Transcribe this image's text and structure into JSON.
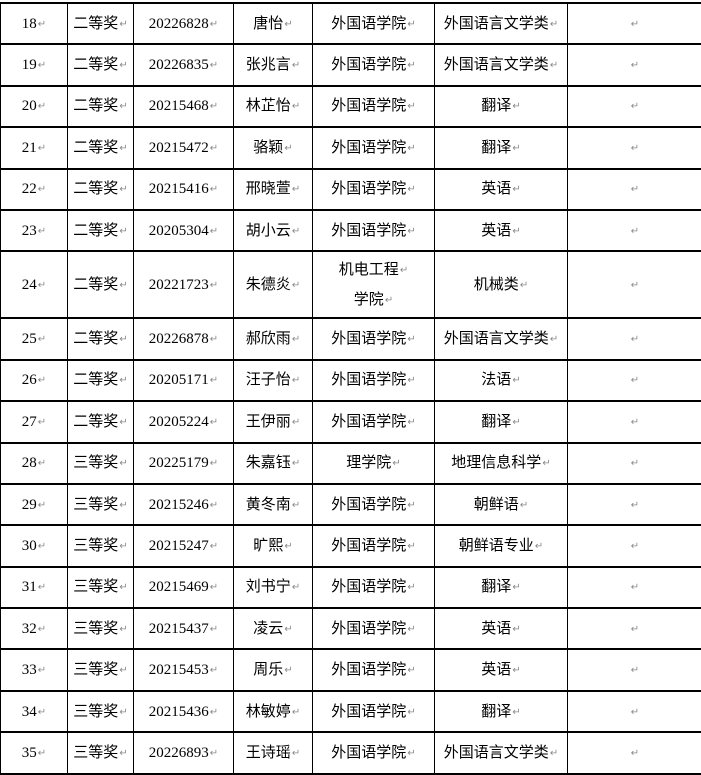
{
  "marks": {
    "paragraph_mark": "↵"
  },
  "colors": {
    "border": "#000000",
    "text": "#000000",
    "paragraph_mark": "#8a8a8a",
    "background": "#ffffff"
  },
  "table": {
    "rows": [
      {
        "no": "18",
        "award": "二等奖",
        "student_id": "20226828",
        "name": "唐怡",
        "college": [
          "外国语学院"
        ],
        "major": "外国语言文学类",
        "tail_align": "center"
      },
      {
        "no": "19",
        "award": "二等奖",
        "student_id": "20226835",
        "name": "张兆言",
        "college": [
          "外国语学院"
        ],
        "major": "外国语言文学类",
        "tail_align": "center"
      },
      {
        "no": "20",
        "award": "二等奖",
        "student_id": "20215468",
        "name": "林芷怡",
        "college": [
          "外国语学院"
        ],
        "major": "翻译",
        "tail_align": "center"
      },
      {
        "no": "21",
        "award": "二等奖",
        "student_id": "20215472",
        "name": "骆颖",
        "college": [
          "外国语学院"
        ],
        "major": "翻译",
        "tail_align": "center"
      },
      {
        "no": "22",
        "award": "二等奖",
        "student_id": "20215416",
        "name": "邢晓萱",
        "college": [
          "外国语学院"
        ],
        "major": "英语",
        "tail_align": "center"
      },
      {
        "no": "23",
        "award": "二等奖",
        "student_id": "20205304",
        "name": "胡小云",
        "college": [
          "外国语学院"
        ],
        "major": "英语",
        "tail_align": "center"
      },
      {
        "no": "24",
        "award": "二等奖",
        "student_id": "20221723",
        "name": "朱德炎",
        "college": [
          "机电工程",
          "学院"
        ],
        "major": "机械类",
        "tail_align": "center"
      },
      {
        "no": "25",
        "award": "二等奖",
        "student_id": "20226878",
        "name": "郝欣雨",
        "college": [
          "外国语学院"
        ],
        "major": "外国语言文学类",
        "tail_align": "center"
      },
      {
        "no": "26",
        "award": "二等奖",
        "student_id": "20205171",
        "name": "汪子怡",
        "college": [
          "外国语学院"
        ],
        "major": "法语",
        "tail_align": "center"
      },
      {
        "no": "27",
        "award": "二等奖",
        "student_id": "20205224",
        "name": "王伊丽",
        "college": [
          "外国语学院"
        ],
        "major": "翻译",
        "tail_align": "center"
      },
      {
        "no": "28",
        "award": "三等奖",
        "student_id": "20225179",
        "name": "朱嘉钰",
        "college": [
          "理学院"
        ],
        "major": "地理信息科学",
        "tail_align": "center"
      },
      {
        "no": "29",
        "award": "三等奖",
        "student_id": "20215246",
        "name": "黄冬南",
        "college": [
          "外国语学院"
        ],
        "major": "朝鲜语",
        "tail_align": "center"
      },
      {
        "no": "30",
        "award": "三等奖",
        "student_id": "20215247",
        "name": "旷熙",
        "college": [
          "外国语学院"
        ],
        "major": "朝鲜语专业",
        "tail_align": "center"
      },
      {
        "no": "31",
        "award": "三等奖",
        "student_id": "20215469",
        "name": "刘书宁",
        "college": [
          "外国语学院"
        ],
        "major": "翻译",
        "tail_align": "center"
      },
      {
        "no": "32",
        "award": "三等奖",
        "student_id": "20215437",
        "name": "凌云",
        "college": [
          "外国语学院"
        ],
        "major": "英语",
        "tail_align": "center"
      },
      {
        "no": "33",
        "award": "三等奖",
        "student_id": "20215453",
        "name": "周乐",
        "college": [
          "外国语学院"
        ],
        "major": "英语",
        "tail_align": "center"
      },
      {
        "no": "34",
        "award": "三等奖",
        "student_id": "20215436",
        "name": "林敏婷",
        "college": [
          "外国语学院"
        ],
        "major": "翻译",
        "tail_align": "left"
      },
      {
        "no": "35",
        "award": "三等奖",
        "student_id": "20226893",
        "name": "王诗瑶",
        "college": [
          "外国语学院"
        ],
        "major": "外国语言文学类",
        "tail_align": "left"
      }
    ]
  }
}
